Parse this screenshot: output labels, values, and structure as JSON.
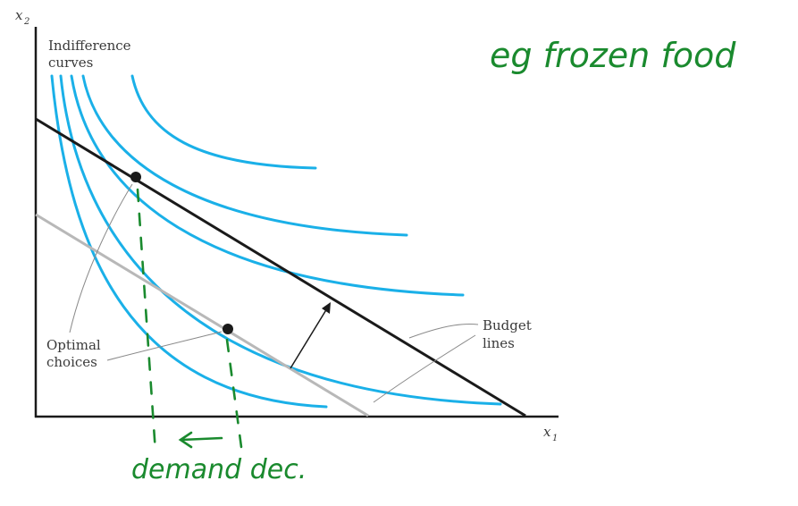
{
  "axes": {
    "x_label": "x",
    "x_sub": "1",
    "y_label": "x",
    "y_sub": "2"
  },
  "labels": {
    "indifference_line1": "Indifference",
    "indifference_line2": "curves",
    "optimal_line1": "Optimal",
    "optimal_line2": "choices",
    "budget_line1": "Budget",
    "budget_line2": "lines"
  },
  "annotations": {
    "top_note": "eg frozen food",
    "bottom_note": "demand dec."
  },
  "colors": {
    "indifference": "#1ab0e8",
    "budget_original": "#1a1a1a",
    "budget_new": "#b8b8b8",
    "annotation": "#1a8a2e",
    "leader": "#8a8a8a"
  }
}
